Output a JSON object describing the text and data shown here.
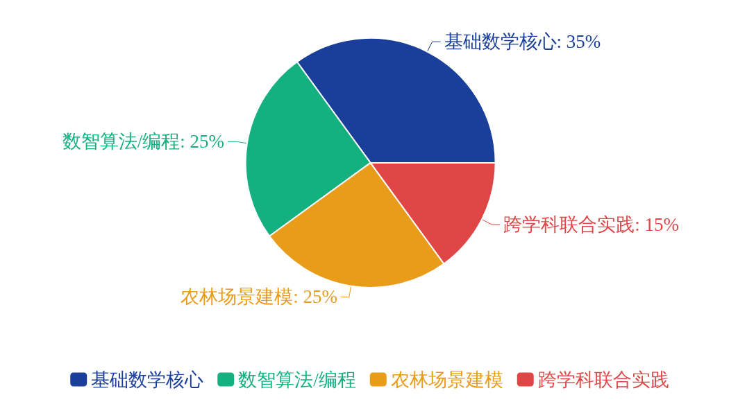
{
  "chart_data": {
    "type": "pie",
    "categories": [
      "基础数学核心",
      "数智算法/编程",
      "农林场景建模",
      "跨学科联合实践"
    ],
    "values": [
      35,
      25,
      25,
      15
    ],
    "colors": [
      "#1a3f9a",
      "#14b07f",
      "#e89c1a",
      "#e04646"
    ],
    "value_labels": [
      ": 35%",
      ": 25%",
      ": 25%",
      ": 15%"
    ],
    "legend": "bottom"
  }
}
